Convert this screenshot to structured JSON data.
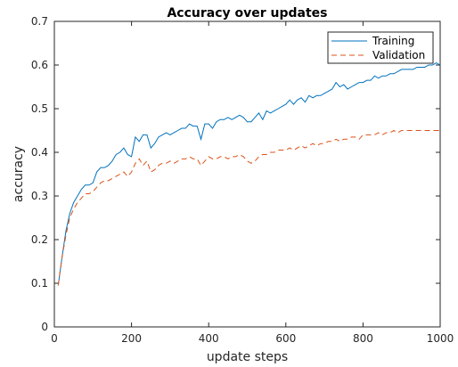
{
  "chart_data": {
    "type": "line",
    "title": "Accuracy over updates",
    "xlabel": "update steps",
    "ylabel": "accuracy",
    "xlim": [
      0,
      1000
    ],
    "ylim": [
      0,
      0.7
    ],
    "xticks": [
      "0",
      "200",
      "400",
      "600",
      "800",
      "1000"
    ],
    "yticks": [
      "0",
      "0.1",
      "0.2",
      "0.3",
      "0.4",
      "0.5",
      "0.6",
      "0.7"
    ],
    "grid": false,
    "legend_position": "top-right",
    "x": [
      10,
      20,
      30,
      40,
      50,
      60,
      70,
      80,
      90,
      100,
      110,
      120,
      130,
      140,
      150,
      160,
      170,
      180,
      190,
      200,
      210,
      220,
      230,
      240,
      250,
      260,
      270,
      280,
      290,
      300,
      310,
      320,
      330,
      340,
      350,
      360,
      370,
      380,
      390,
      400,
      410,
      420,
      430,
      440,
      450,
      460,
      470,
      480,
      490,
      500,
      510,
      520,
      530,
      540,
      550,
      560,
      570,
      580,
      590,
      600,
      610,
      620,
      630,
      640,
      650,
      660,
      670,
      680,
      690,
      700,
      710,
      720,
      730,
      740,
      750,
      760,
      770,
      780,
      790,
      800,
      810,
      820,
      830,
      840,
      850,
      860,
      870,
      880,
      890,
      900,
      910,
      920,
      930,
      940,
      950,
      960,
      970,
      980,
      990,
      1000
    ],
    "series": [
      {
        "name": "Training",
        "color": "#0072BD",
        "dash": "solid",
        "values": [
          0.095,
          0.16,
          0.22,
          0.26,
          0.285,
          0.3,
          0.315,
          0.325,
          0.325,
          0.33,
          0.355,
          0.365,
          0.365,
          0.37,
          0.38,
          0.395,
          0.4,
          0.41,
          0.395,
          0.39,
          0.435,
          0.425,
          0.44,
          0.44,
          0.41,
          0.42,
          0.435,
          0.44,
          0.445,
          0.44,
          0.445,
          0.45,
          0.455,
          0.455,
          0.465,
          0.46,
          0.46,
          0.43,
          0.465,
          0.465,
          0.455,
          0.47,
          0.475,
          0.475,
          0.48,
          0.475,
          0.48,
          0.485,
          0.48,
          0.47,
          0.47,
          0.48,
          0.49,
          0.475,
          0.495,
          0.49,
          0.495,
          0.5,
          0.505,
          0.51,
          0.52,
          0.51,
          0.52,
          0.525,
          0.515,
          0.53,
          0.525,
          0.53,
          0.53,
          0.535,
          0.54,
          0.545,
          0.56,
          0.55,
          0.555,
          0.545,
          0.55,
          0.555,
          0.56,
          0.56,
          0.565,
          0.565,
          0.575,
          0.57,
          0.575,
          0.575,
          0.58,
          0.58,
          0.585,
          0.59,
          0.59,
          0.59,
          0.59,
          0.595,
          0.595,
          0.595,
          0.6,
          0.6,
          0.605,
          0.6
        ]
      },
      {
        "name": "Validation",
        "color": "#D95319",
        "dash": "dashed",
        "values": [
          0.095,
          0.16,
          0.21,
          0.25,
          0.27,
          0.285,
          0.295,
          0.305,
          0.305,
          0.31,
          0.32,
          0.33,
          0.335,
          0.335,
          0.34,
          0.345,
          0.35,
          0.355,
          0.345,
          0.355,
          0.375,
          0.385,
          0.37,
          0.38,
          0.355,
          0.36,
          0.37,
          0.375,
          0.375,
          0.38,
          0.375,
          0.38,
          0.385,
          0.385,
          0.39,
          0.385,
          0.385,
          0.37,
          0.38,
          0.39,
          0.385,
          0.385,
          0.39,
          0.39,
          0.385,
          0.39,
          0.39,
          0.395,
          0.39,
          0.38,
          0.375,
          0.38,
          0.39,
          0.395,
          0.395,
          0.4,
          0.4,
          0.405,
          0.405,
          0.405,
          0.41,
          0.405,
          0.41,
          0.415,
          0.41,
          0.415,
          0.42,
          0.415,
          0.42,
          0.42,
          0.425,
          0.425,
          0.43,
          0.425,
          0.43,
          0.43,
          0.435,
          0.435,
          0.43,
          0.44,
          0.44,
          0.44,
          0.44,
          0.445,
          0.44,
          0.445,
          0.445,
          0.45,
          0.445,
          0.45,
          0.45,
          0.45,
          0.45,
          0.45,
          0.45,
          0.45,
          0.45,
          0.45,
          0.45,
          0.45
        ]
      }
    ]
  }
}
